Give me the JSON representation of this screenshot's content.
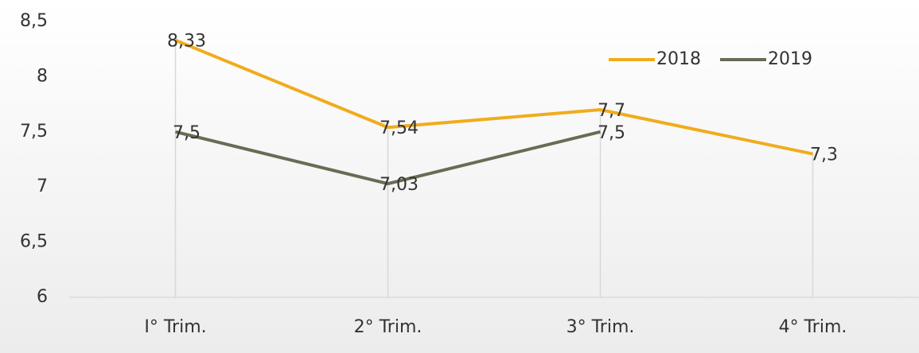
{
  "chart_data": {
    "type": "line",
    "categories": [
      "I° Trim.",
      "2° Trim.",
      "3° Trim.",
      "4° Trim."
    ],
    "series": [
      {
        "name": "2018",
        "color": "#f0ac1c",
        "values": [
          8.33,
          7.54,
          7.7,
          7.3
        ],
        "value_labels": [
          "8,33",
          "7,54",
          "7,7",
          "7,3"
        ]
      },
      {
        "name": "2019",
        "color": "#6b6b55",
        "values": [
          7.5,
          7.03,
          7.5,
          null
        ],
        "value_labels": [
          "7,5",
          "7,03",
          "7,5",
          null
        ]
      }
    ],
    "ylim": [
      6,
      8.5
    ],
    "yticks": [
      {
        "value": 6,
        "label": "6"
      },
      {
        "value": 6.5,
        "label": "6,5"
      },
      {
        "value": 7,
        "label": "7"
      },
      {
        "value": 7.5,
        "label": "7,5"
      },
      {
        "value": 8,
        "label": "8"
      },
      {
        "value": 8.5,
        "label": "8,5"
      }
    ],
    "legend": "top-right",
    "drop_lines": true
  }
}
